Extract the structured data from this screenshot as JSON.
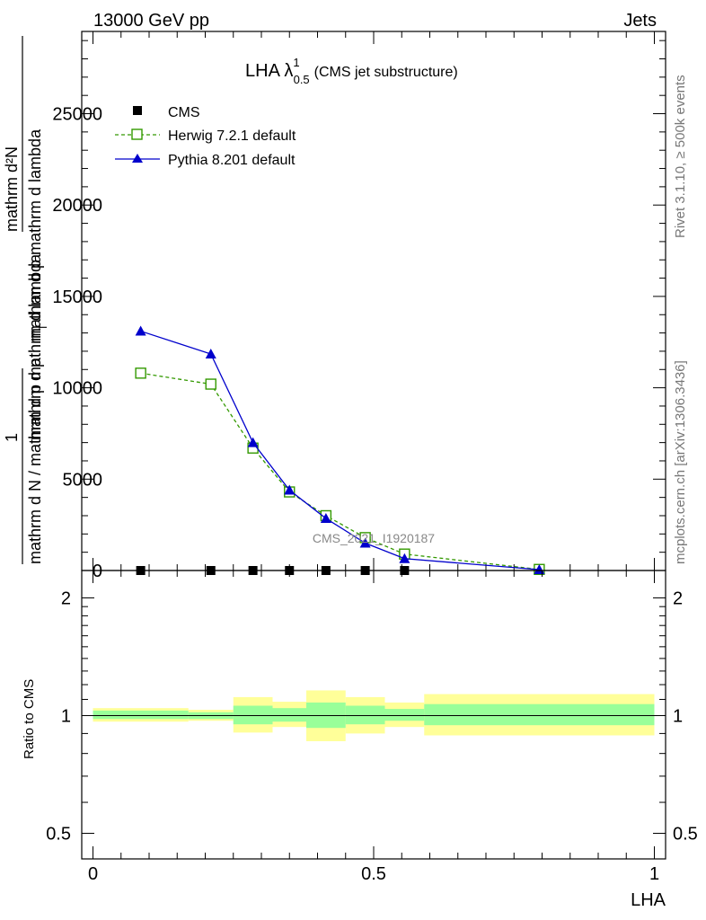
{
  "header": {
    "left": "13000 GeV pp",
    "right": "Jets"
  },
  "side_text": {
    "rivet": "Rivet 3.1.10, ≥ 500k events",
    "mcplots": "mcplots.cern.ch [arXiv:1306.3436]"
  },
  "chart_data": [
    {
      "type": "line",
      "title_main": "LHA λ",
      "title_sup": "1",
      "title_sub": "0.5",
      "title_extra": "(CMS jet substructure)",
      "ylabel_top": "mathrm d²N",
      "ylabel_top2": "mathrm d p mathrm d lambda",
      "ylabel_mid": "mathrm d p",
      "ylabel_T": "T",
      "ylabel_bot": "mathrm d N / mathrm d p mathrm d lambda",
      "ylabel_one": "1",
      "analysis_label": "CMS_2021_I1920187",
      "ylim": [
        0,
        29500
      ],
      "xlim": [
        -0.02,
        1.02
      ],
      "yticks": [
        0,
        5000,
        10000,
        15000,
        20000,
        25000
      ],
      "ytick_labels": [
        "0",
        "5000",
        "10000",
        "15000",
        "20000",
        "25000"
      ],
      "legend_position": "top-left",
      "series": [
        {
          "name": "CMS",
          "color": "#000000",
          "marker": "square",
          "x": [
            0.085,
            0.21,
            0.285,
            0.35,
            0.415,
            0.485,
            0.555,
            0.795
          ],
          "values": [
            0,
            0,
            0,
            0,
            0,
            0,
            0,
            0
          ]
        },
        {
          "name": "Herwig 7.2.1 default",
          "color": "#339900",
          "marker": "open-square",
          "dash": true,
          "x": [
            0.085,
            0.21,
            0.285,
            0.35,
            0.415,
            0.485,
            0.555,
            0.795
          ],
          "values": [
            10800,
            10200,
            6700,
            4300,
            3000,
            1800,
            900,
            60
          ]
        },
        {
          "name": "Pythia 8.201 default",
          "color": "#0000cc",
          "marker": "triangle",
          "x": [
            0.085,
            0.21,
            0.285,
            0.35,
            0.415,
            0.485,
            0.555,
            0.795
          ],
          "values": [
            13100,
            11850,
            7000,
            4400,
            2850,
            1500,
            650,
            50
          ]
        }
      ]
    },
    {
      "type": "area",
      "ylabel": "Ratio to CMS",
      "xlabel": "LHA",
      "xlim": [
        -0.02,
        1.02
      ],
      "ylim_note": "log scale",
      "yticks": [
        0.5,
        1,
        2
      ],
      "ytick_labels": [
        "0.5",
        "1",
        "2"
      ],
      "xticks": [
        0,
        0.5,
        1
      ],
      "xtick_labels": [
        "0",
        "0.5",
        "1"
      ],
      "bins": [
        {
          "lo": 0.0,
          "hi": 0.17,
          "stat_lo": 0.98,
          "stat_hi": 1.03,
          "tot_lo": 0.965,
          "tot_hi": 1.045
        },
        {
          "lo": 0.17,
          "hi": 0.25,
          "stat_lo": 0.98,
          "stat_hi": 1.02,
          "tot_lo": 0.97,
          "tot_hi": 1.035
        },
        {
          "lo": 0.25,
          "hi": 0.32,
          "stat_lo": 0.95,
          "stat_hi": 1.06,
          "tot_lo": 0.905,
          "tot_hi": 1.115
        },
        {
          "lo": 0.32,
          "hi": 0.38,
          "stat_lo": 0.965,
          "stat_hi": 1.045,
          "tot_lo": 0.935,
          "tot_hi": 1.085
        },
        {
          "lo": 0.38,
          "hi": 0.45,
          "stat_lo": 0.93,
          "stat_hi": 1.08,
          "tot_lo": 0.86,
          "tot_hi": 1.16
        },
        {
          "lo": 0.45,
          "hi": 0.52,
          "stat_lo": 0.95,
          "stat_hi": 1.06,
          "tot_lo": 0.9,
          "tot_hi": 1.115
        },
        {
          "lo": 0.52,
          "hi": 0.59,
          "stat_lo": 0.97,
          "stat_hi": 1.04,
          "tot_lo": 0.935,
          "tot_hi": 1.08
        },
        {
          "lo": 0.59,
          "hi": 1.0,
          "stat_lo": 0.945,
          "stat_hi": 1.07,
          "tot_lo": 0.89,
          "tot_hi": 1.135
        }
      ],
      "colors": {
        "stat": "#99ff99",
        "total": "#ffff99",
        "ref_line": "#000000"
      }
    }
  ]
}
